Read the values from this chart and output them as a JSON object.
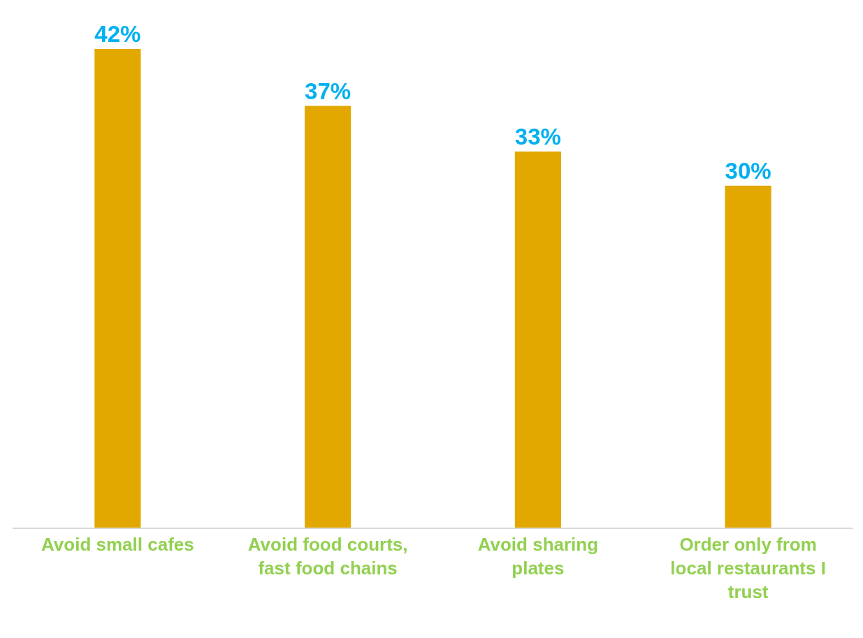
{
  "chart_data": {
    "type": "bar",
    "categories": [
      "Avoid small cafes",
      "Avoid food courts, fast food chains",
      "Avoid sharing plates",
      "Order only from local restaurants I trust"
    ],
    "values": [
      42,
      37,
      33,
      30
    ],
    "value_labels": [
      "42%",
      "37%",
      "33%",
      "30%"
    ],
    "color": "#e2a800"
  }
}
